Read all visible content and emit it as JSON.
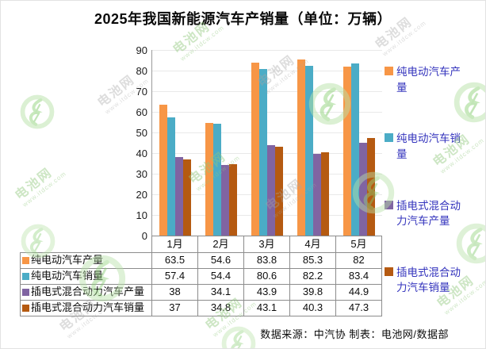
{
  "title": "2025年我国新能源汽车产销量（单位：万辆）",
  "source_note": "数据来源：中汽协  制表：电池网/数据部",
  "watermark": {
    "brand": "电池网",
    "url": "www.itdcw.com"
  },
  "chart_data": {
    "type": "bar",
    "title": "2025年我国新能源汽车产销量（单位：万辆）",
    "unit": "万辆",
    "categories": [
      "1月",
      "2月",
      "3月",
      "4月",
      "5月"
    ],
    "series": [
      {
        "name": "纯电动汽车产量",
        "color": "#F79646",
        "values": [
          63.5,
          54.6,
          83.8,
          85.3,
          82
        ]
      },
      {
        "name": "纯电动汽车销量",
        "color": "#4BACC6",
        "values": [
          57.4,
          54.4,
          80.6,
          82.2,
          83.4
        ]
      },
      {
        "name": "插电式混合动力汽车产量",
        "color": "#8064A2",
        "values": [
          38,
          34.1,
          43.9,
          39.8,
          44.9
        ]
      },
      {
        "name": "插电式混合动力汽车销量",
        "color": "#B55A11",
        "values": [
          37,
          34.8,
          43.1,
          40.3,
          47.3
        ]
      }
    ],
    "xlabel": "",
    "ylabel": "",
    "ylim": [
      0,
      90
    ],
    "ytick_step": 10,
    "grid": true,
    "legend_position": "right",
    "show_data_table": true
  }
}
